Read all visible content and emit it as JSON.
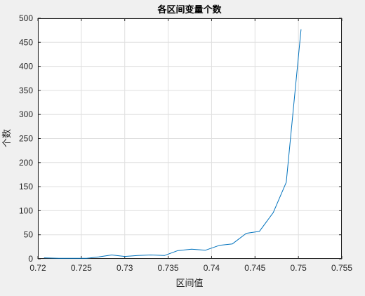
{
  "chart_data": {
    "type": "line",
    "title": "各区间变量个数",
    "xlabel": "区间值",
    "ylabel": "个数",
    "xlim": [
      0.72,
      0.755
    ],
    "ylim": [
      0,
      500
    ],
    "xticks": [
      0.72,
      0.725,
      0.73,
      0.735,
      0.74,
      0.745,
      0.75,
      0.755
    ],
    "xtick_labels": [
      "0.72",
      "0.725",
      "0.73",
      "0.735",
      "0.74",
      "0.745",
      "0.75",
      "0.755"
    ],
    "yticks": [
      0,
      50,
      100,
      150,
      200,
      250,
      300,
      350,
      400,
      450,
      500
    ],
    "ytick_labels": [
      "0",
      "50",
      "100",
      "150",
      "200",
      "250",
      "300",
      "350",
      "400",
      "450",
      "500"
    ],
    "grid": true,
    "line_color": "#0072bd",
    "series": [
      {
        "x": [
          0.7207,
          0.7224,
          0.724,
          0.7256,
          0.727,
          0.7285,
          0.73,
          0.7315,
          0.733,
          0.7346,
          0.7361,
          0.7377,
          0.7393,
          0.7409,
          0.7424,
          0.744,
          0.7455,
          0.7471,
          0.7486,
          0.7503
        ],
        "y": [
          2,
          1,
          1,
          1,
          4,
          8,
          5,
          7,
          8,
          7,
          17,
          20,
          18,
          28,
          31,
          53,
          57,
          96,
          159,
          477
        ]
      }
    ]
  }
}
